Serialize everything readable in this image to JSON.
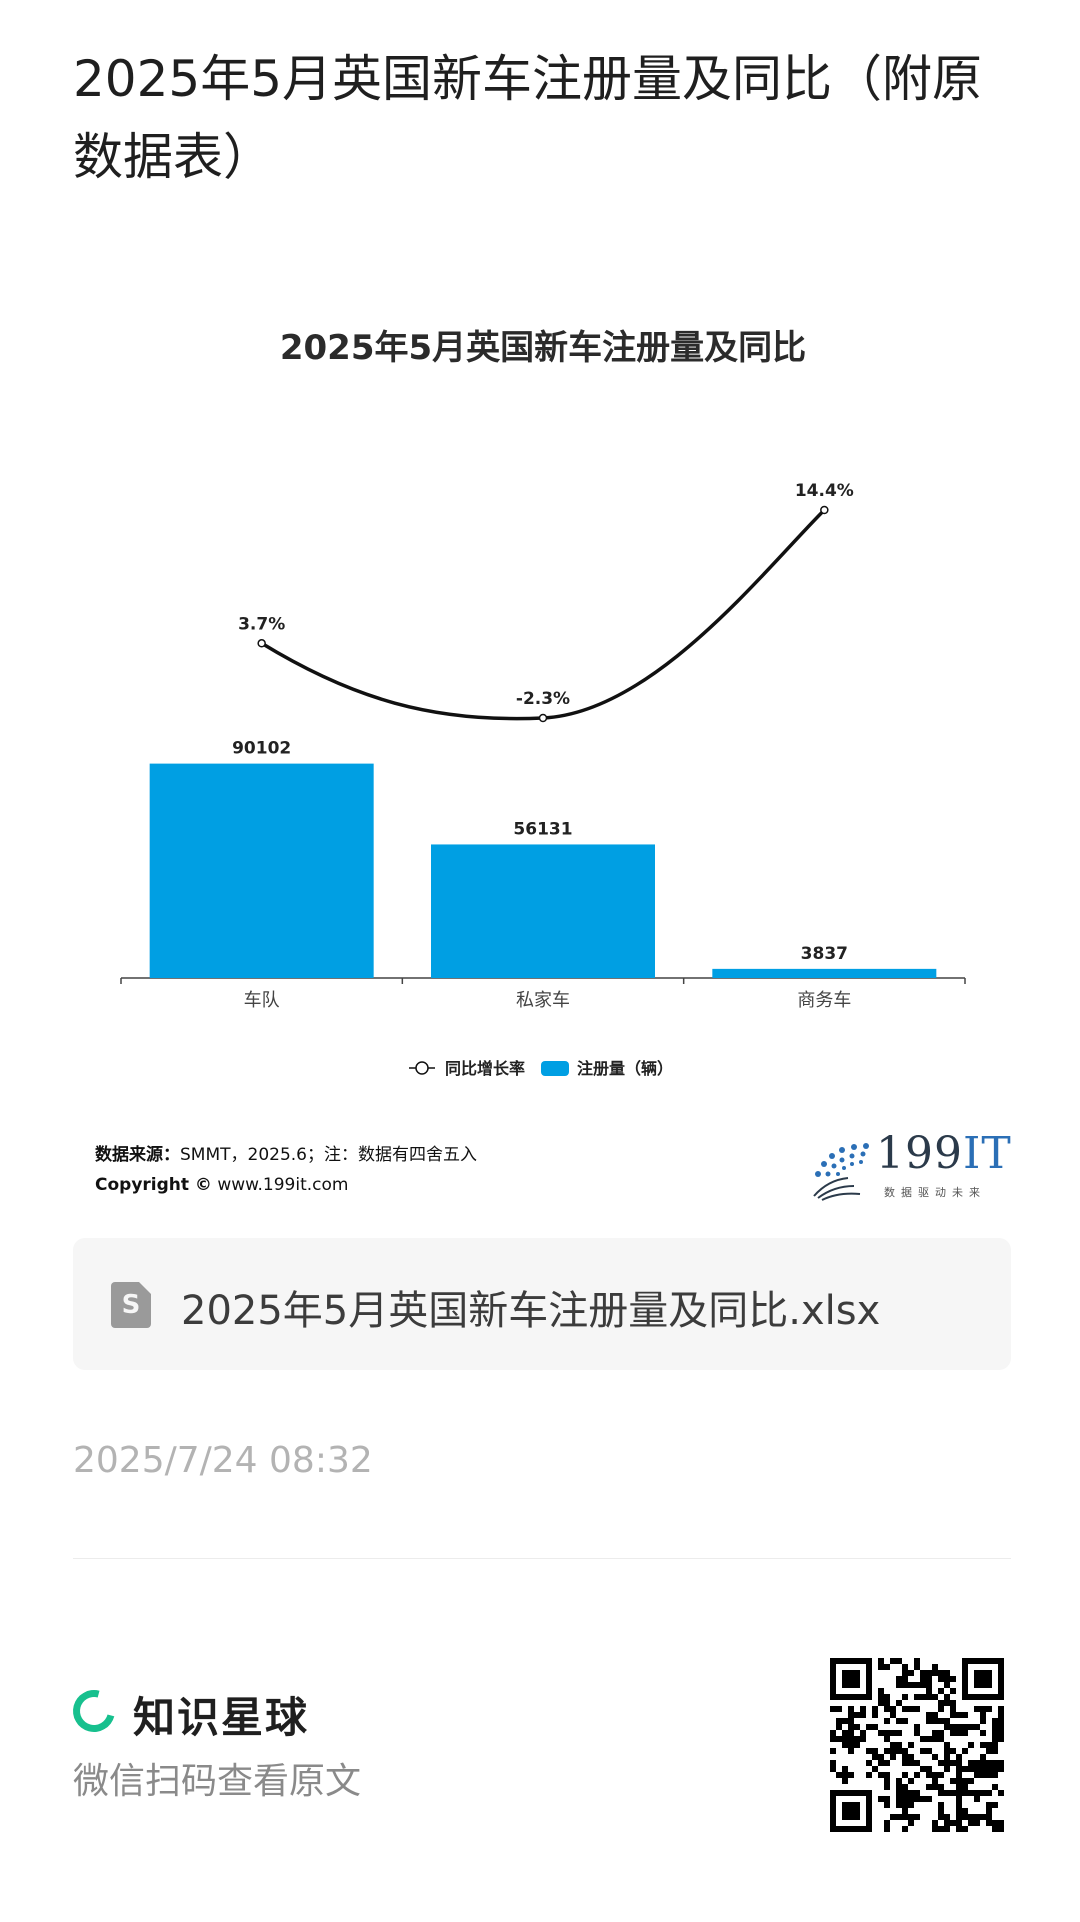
{
  "post": {
    "title": "2025年5月英国新车注册量及同比（附原数据表）",
    "file_name": "2025年5月英国新车注册量及同比.xlsx",
    "file_icon_letter": "S",
    "timestamp": "2025/7/24 08:32"
  },
  "chart_data": {
    "type": "bar",
    "title": "2025年5月英国新车注册量及同比",
    "categories": [
      "车队",
      "私家车",
      "商务车"
    ],
    "series": [
      {
        "name": "注册量（辆）",
        "kind": "bar",
        "color": "#009fe3",
        "values": [
          90102,
          56131,
          3837
        ],
        "labels": [
          "90102",
          "56131",
          "3837"
        ]
      },
      {
        "name": "同比增长率",
        "kind": "line",
        "color": "#111111",
        "values": [
          3.7,
          -2.3,
          14.4
        ],
        "labels": [
          "3.7%",
          "-2.3%",
          "14.4%"
        ]
      }
    ],
    "legend": [
      "同比增长率",
      "注册量（辆）"
    ],
    "legend_placement": "bottom"
  },
  "source": {
    "label": "数据来源：",
    "text": "SMMT，2025.6；注：数据有四舍五入",
    "copyright_label": "Copyright ©",
    "copyright_url": "www.199it.com"
  },
  "logo": {
    "brand_num": "199",
    "brand_it": "IT",
    "slogan": "数据驱动未来"
  },
  "footer": {
    "brand": "知识星球",
    "hint": "微信扫码查看原文"
  },
  "colors": {
    "accent_green": "#17c08e",
    "bar_blue": "#009fe3"
  }
}
